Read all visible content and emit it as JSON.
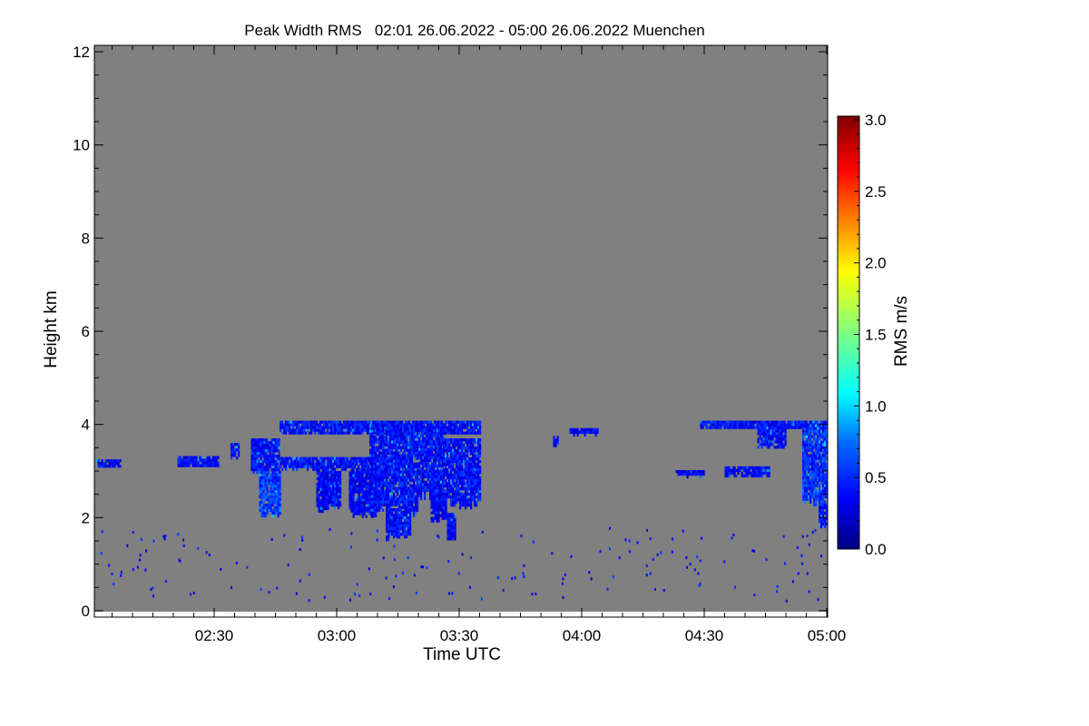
{
  "chart_data": {
    "type": "heatmap",
    "title": "Peak Width RMS   02:01 26.06.2022 - 05:00 26.06.2022 Muenchen",
    "xlabel": "Time UTC",
    "ylabel": "Height km",
    "colorbar_label": "RMS m/s",
    "x_range_minutes_after_0200": [
      1,
      180
    ],
    "x_ticks": [
      {
        "min": 30,
        "label": "02:30"
      },
      {
        "min": 60,
        "label": "03:00"
      },
      {
        "min": 90,
        "label": "03:30"
      },
      {
        "min": 120,
        "label": "04:00"
      },
      {
        "min": 150,
        "label": "04:30"
      },
      {
        "min": 180,
        "label": "05:00"
      }
    ],
    "ylim": [
      -0.1,
      12.1
    ],
    "y_ticks": [
      "0",
      "2",
      "4",
      "6",
      "8",
      "10",
      "12"
    ],
    "colorbar_range": [
      0,
      3
    ],
    "colorbar_ticks": [
      "0.0",
      "0.5",
      "1.0",
      "1.5",
      "2.0",
      "2.5",
      "3.0"
    ],
    "background_color": "#808080",
    "echo_regions": [
      {
        "t0": 1,
        "t1": 7,
        "h0": 3.08,
        "h1": 3.25,
        "rms": 0.35
      },
      {
        "t0": 21,
        "t1": 31,
        "h0": 3.1,
        "h1": 3.32,
        "rms": 0.4
      },
      {
        "t0": 34,
        "t1": 36,
        "h0": 3.3,
        "h1": 3.6,
        "rms": 0.4
      },
      {
        "t0": 39,
        "t1": 46,
        "h0": 2.95,
        "h1": 3.7,
        "rms": 0.4
      },
      {
        "t0": 41,
        "t1": 46,
        "h0": 2.0,
        "h1": 3.0,
        "rms": 0.55
      },
      {
        "t0": 46,
        "t1": 78,
        "h0": 3.05,
        "h1": 3.3,
        "rms": 0.4
      },
      {
        "t0": 46,
        "t1": 95,
        "h0": 3.8,
        "h1": 4.08,
        "rms": 0.4
      },
      {
        "t0": 55,
        "t1": 58,
        "h0": 2.1,
        "h1": 3.1,
        "rms": 0.35
      },
      {
        "t0": 58,
        "t1": 61,
        "h0": 2.2,
        "h1": 3.0,
        "rms": 0.4
      },
      {
        "t0": 63,
        "t1": 70,
        "h0": 2.0,
        "h1": 3.05,
        "rms": 0.35
      },
      {
        "t0": 68,
        "t1": 80,
        "h0": 2.0,
        "h1": 4.0,
        "rms": 0.4
      },
      {
        "t0": 72,
        "t1": 78,
        "h0": 1.55,
        "h1": 2.2,
        "rms": 0.4
      },
      {
        "t0": 80,
        "t1": 86,
        "h0": 2.4,
        "h1": 3.9,
        "rms": 0.4
      },
      {
        "t0": 83,
        "t1": 87,
        "h0": 1.9,
        "h1": 2.6,
        "rms": 0.35
      },
      {
        "t0": 86,
        "t1": 95,
        "h0": 2.2,
        "h1": 3.7,
        "rms": 0.4
      },
      {
        "t0": 87,
        "t1": 89,
        "h0": 1.5,
        "h1": 2.1,
        "rms": 0.35
      },
      {
        "t0": 113,
        "t1": 114,
        "h0": 3.55,
        "h1": 3.75,
        "rms": 0.4
      },
      {
        "t0": 117,
        "t1": 124,
        "h0": 3.8,
        "h1": 3.92,
        "rms": 0.35
      },
      {
        "t0": 143,
        "t1": 150,
        "h0": 2.9,
        "h1": 3.02,
        "rms": 0.35
      },
      {
        "t0": 155,
        "t1": 166,
        "h0": 2.9,
        "h1": 3.1,
        "rms": 0.35
      },
      {
        "t0": 149,
        "t1": 180,
        "h0": 3.92,
        "h1": 4.08,
        "rms": 0.4
      },
      {
        "t0": 163,
        "t1": 170,
        "h0": 3.5,
        "h1": 3.95,
        "rms": 0.4
      },
      {
        "t0": 174,
        "t1": 180,
        "h0": 2.2,
        "h1": 4.0,
        "rms": 0.5
      },
      {
        "t0": 178,
        "t1": 180,
        "h0": 1.8,
        "h1": 2.3,
        "rms": 0.4
      }
    ]
  }
}
